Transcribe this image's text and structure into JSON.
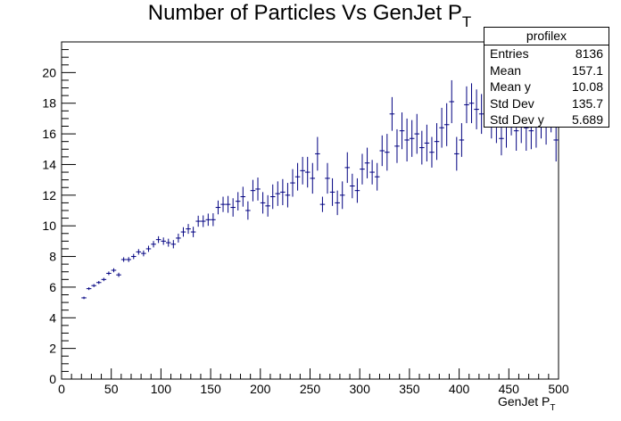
{
  "chart_data": {
    "type": "scatter",
    "title": "Number of Particles Vs GenJet P",
    "title_subscript": "T",
    "xlabel": "GenJet P",
    "xlabel_subscript": "T",
    "ylabel": "",
    "xlim": [
      0,
      500
    ],
    "ylim": [
      0,
      22
    ],
    "x_ticks": [
      "0",
      "50",
      "100",
      "150",
      "200",
      "250",
      "300",
      "350",
      "400",
      "450",
      "500"
    ],
    "y_ticks": [
      "0",
      "2",
      "4",
      "6",
      "8",
      "10",
      "12",
      "14",
      "16",
      "18",
      "20"
    ],
    "grid": false,
    "marker_color": "#000080",
    "series": [
      {
        "x": [
          22.5,
          27.5,
          32.5,
          37.5,
          42.5,
          47.5,
          52.5,
          57.5,
          62.5,
          67.5,
          72.5,
          77.5,
          82.5,
          87.5,
          92.5,
          97.5,
          102.5,
          107.5,
          112.5,
          117.5,
          122.5,
          127.5,
          132.5,
          137.5,
          142.5,
          147.5,
          152.5,
          157.5,
          162.5,
          167.5,
          172.5,
          177.5,
          182.5,
          187.5,
          192.5,
          197.5,
          202.5,
          207.5,
          212.5,
          217.5,
          222.5,
          227.5,
          232.5,
          237.5,
          242.5,
          247.5,
          252.5,
          257.5,
          262.5,
          267.5,
          272.5,
          277.5,
          282.5,
          287.5,
          292.5,
          297.5,
          302.5,
          307.5,
          312.5,
          317.5,
          322.5,
          327.5,
          332.5,
          337.5,
          342.5,
          347.5,
          352.5,
          357.5,
          362.5,
          367.5,
          372.5,
          377.5,
          382.5,
          387.5,
          392.5,
          397.5,
          402.5,
          407.5,
          412.5,
          417.5,
          422.5,
          427.5,
          432.5,
          437.5,
          442.5,
          447.5,
          452.5,
          457.5,
          462.5,
          467.5,
          472.5,
          477.5,
          482.5,
          487.5,
          492.5,
          497.5
        ],
        "y": [
          5.3,
          5.9,
          6.1,
          6.3,
          6.5,
          6.9,
          7.1,
          6.8,
          7.8,
          7.8,
          8.0,
          8.3,
          8.2,
          8.5,
          8.8,
          9.1,
          9.0,
          8.9,
          8.8,
          9.2,
          9.6,
          9.8,
          9.6,
          10.3,
          10.3,
          10.4,
          10.4,
          11.2,
          11.4,
          11.4,
          11.2,
          11.6,
          11.9,
          11.0,
          12.3,
          12.4,
          11.5,
          11.3,
          11.9,
          12.1,
          12.2,
          12.0,
          12.8,
          13.2,
          13.6,
          13.5,
          13.1,
          14.7,
          11.4,
          13.1,
          12.2,
          11.5,
          12.0,
          13.8,
          12.6,
          12.3,
          13.7,
          14.1,
          13.5,
          13.2,
          14.9,
          14.8,
          17.3,
          15.2,
          16.2,
          15.6,
          15.7,
          16.0,
          15.1,
          15.4,
          14.8,
          15.5,
          16.4,
          16.6,
          18.1,
          14.7,
          15.6,
          17.9,
          18.0,
          17.6,
          17.3,
          18.5,
          17.0,
          16.6,
          15.7,
          16.5,
          17.2,
          16.2,
          16.8,
          16.4,
          16.2,
          16.5,
          17.1,
          16.8,
          17.5,
          15.6
        ],
        "yerr": [
          0.08,
          0.09,
          0.1,
          0.1,
          0.11,
          0.12,
          0.13,
          0.14,
          0.15,
          0.16,
          0.17,
          0.18,
          0.19,
          0.2,
          0.21,
          0.22,
          0.24,
          0.26,
          0.27,
          0.29,
          0.31,
          0.32,
          0.34,
          0.36,
          0.38,
          0.4,
          0.42,
          0.45,
          0.5,
          0.55,
          0.6,
          0.6,
          0.65,
          0.6,
          0.7,
          0.75,
          0.7,
          0.7,
          0.8,
          0.8,
          0.85,
          0.8,
          0.9,
          0.9,
          0.9,
          1.0,
          1.0,
          1.1,
          0.5,
          1.0,
          0.9,
          0.8,
          0.9,
          1.0,
          0.8,
          0.8,
          1.0,
          1.0,
          0.8,
          0.9,
          1.0,
          1.2,
          1.1,
          1.1,
          1.2,
          1.4,
          1.2,
          1.3,
          1.1,
          1.2,
          1.0,
          1.2,
          1.3,
          1.4,
          1.4,
          1.1,
          1.1,
          1.2,
          1.3,
          1.3,
          1.3,
          1.4,
          1.3,
          1.2,
          1.1,
          1.4,
          1.3,
          1.3,
          1.4,
          1.5,
          1.2,
          1.4,
          1.4,
          1.5,
          1.4,
          1.4
        ]
      }
    ]
  },
  "stats": {
    "name": "profilex",
    "rows": [
      {
        "label": "Entries",
        "value": "8136"
      },
      {
        "label": "Mean",
        "value": "157.1"
      },
      {
        "label": "Mean y",
        "value": "10.08"
      },
      {
        "label": "Std Dev",
        "value": "135.7"
      },
      {
        "label": "Std Dev y",
        "value": "5.689"
      }
    ]
  }
}
